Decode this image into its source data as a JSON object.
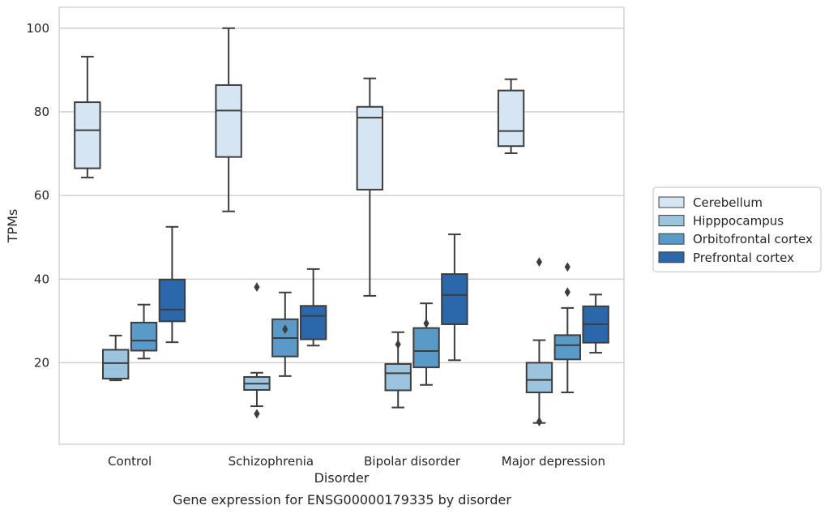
{
  "chart_data": {
    "type": "box",
    "caption": "Gene expression for ENSG00000179335 by disorder",
    "xlabel": "Disorder",
    "ylabel": "TPMs",
    "ylim": [
      0.5,
      105
    ],
    "yticks": [
      20,
      40,
      60,
      80,
      100
    ],
    "grid": true,
    "legend_placement": "right",
    "categories": [
      "Control",
      "Schizophrenia",
      "Bipolar disorder",
      "Major depression"
    ],
    "series": [
      {
        "name": "Cerebellum",
        "color": "#d6e5f3",
        "boxes": [
          {
            "whislo": 64.3,
            "q1": 66.5,
            "med": 75.6,
            "q3": 82.3,
            "whishi": 93.2,
            "fliers": []
          },
          {
            "whislo": 56.2,
            "q1": 69.2,
            "med": 80.3,
            "q3": 86.4,
            "whishi": 100.0,
            "fliers": []
          },
          {
            "whislo": 36.0,
            "q1": 61.4,
            "med": 78.6,
            "q3": 81.2,
            "whishi": 88.0,
            "fliers": []
          },
          {
            "whislo": 70.1,
            "q1": 71.8,
            "med": 75.4,
            "q3": 85.1,
            "whishi": 87.8,
            "fliers": []
          }
        ]
      },
      {
        "name": "Hipppocampus",
        "color": "#9dc4de",
        "boxes": [
          {
            "whislo": 15.8,
            "q1": 16.2,
            "med": 19.9,
            "q3": 23.1,
            "whishi": 26.5,
            "fliers": []
          },
          {
            "whislo": 9.6,
            "q1": 13.5,
            "med": 15.0,
            "q3": 16.6,
            "whishi": 17.6,
            "fliers": [
              38.1,
              7.8
            ]
          },
          {
            "whislo": 9.3,
            "q1": 13.4,
            "med": 17.5,
            "q3": 19.7,
            "whishi": 27.3,
            "fliers": [
              24.4
            ]
          },
          {
            "whislo": 5.6,
            "q1": 12.9,
            "med": 15.9,
            "q3": 20.0,
            "whishi": 25.4,
            "fliers": [
              44.1,
              5.9
            ]
          }
        ]
      },
      {
        "name": "Orbitofrontal cortex",
        "color": "#5a9ac8",
        "boxes": [
          {
            "whislo": 21.0,
            "q1": 22.9,
            "med": 25.3,
            "q3": 29.6,
            "whishi": 33.9,
            "fliers": []
          },
          {
            "whislo": 16.8,
            "q1": 21.5,
            "med": 25.9,
            "q3": 30.4,
            "whishi": 36.8,
            "fliers": [
              28.0
            ]
          },
          {
            "whislo": 14.7,
            "q1": 18.9,
            "med": 22.8,
            "q3": 28.3,
            "whishi": 34.2,
            "fliers": [
              29.4
            ]
          },
          {
            "whislo": 12.9,
            "q1": 20.8,
            "med": 24.2,
            "q3": 26.6,
            "whishi": 33.1,
            "fliers": [
              42.9,
              36.9
            ]
          }
        ]
      },
      {
        "name": "Prefrontal cortex",
        "color": "#2b68ab",
        "boxes": [
          {
            "whislo": 24.9,
            "q1": 29.9,
            "med": 32.7,
            "q3": 39.9,
            "whishi": 52.5,
            "fliers": []
          },
          {
            "whislo": 24.1,
            "q1": 25.6,
            "med": 31.2,
            "q3": 33.6,
            "whishi": 42.4,
            "fliers": []
          },
          {
            "whislo": 20.6,
            "q1": 29.2,
            "med": 36.2,
            "q3": 41.2,
            "whishi": 50.7,
            "fliers": []
          },
          {
            "whislo": 22.4,
            "q1": 24.8,
            "med": 29.2,
            "q3": 33.5,
            "whishi": 36.3,
            "fliers": []
          }
        ]
      }
    ]
  }
}
